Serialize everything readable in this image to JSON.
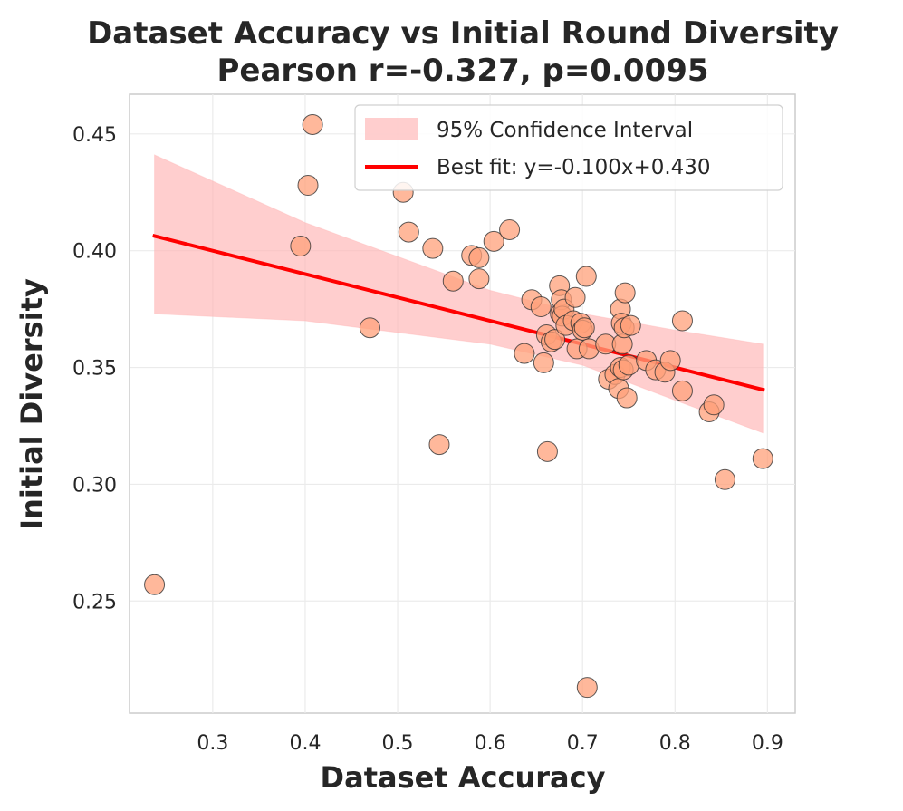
{
  "chart_data": {
    "type": "scatter",
    "title": "Dataset Accuracy vs Initial Round Diversity",
    "subtitle": "Pearson r=-0.327, p=0.0095",
    "xlabel": "Dataset Accuracy",
    "ylabel": "Initial Diversity",
    "xlim": [
      0.21,
      0.93
    ],
    "ylim": [
      0.202,
      0.467
    ],
    "xticks": [
      0.3,
      0.4,
      0.5,
      0.6,
      0.7,
      0.8,
      0.9
    ],
    "yticks": [
      0.25,
      0.3,
      0.35,
      0.4,
      0.45
    ],
    "xtick_labels": [
      "0.3",
      "0.4",
      "0.5",
      "0.6",
      "0.7",
      "0.8",
      "0.9"
    ],
    "ytick_labels": [
      "0.25",
      "0.30",
      "0.35",
      "0.40",
      "0.45"
    ],
    "grid": true,
    "legend_position": "top-right",
    "legend": [
      {
        "label": "95% Confidence Interval",
        "kind": "band"
      },
      {
        "label": "Best fit: y=-0.100x+0.430",
        "kind": "line"
      }
    ],
    "fit_line": {
      "slope": -0.1,
      "intercept": 0.43,
      "x_range": [
        0.237,
        0.895
      ],
      "color": "#ff0000"
    },
    "confidence_band": {
      "x": [
        0.237,
        0.4,
        0.6,
        0.7,
        0.8,
        0.895
      ],
      "upper": [
        0.441,
        0.412,
        0.383,
        0.373,
        0.366,
        0.36
      ],
      "lower": [
        0.373,
        0.37,
        0.36,
        0.351,
        0.336,
        0.322
      ],
      "color": "#ffb3b3"
    },
    "points": {
      "color": "#ffa07a",
      "x": [
        0.237,
        0.395,
        0.403,
        0.408,
        0.47,
        0.506,
        0.512,
        0.538,
        0.545,
        0.56,
        0.58,
        0.588,
        0.588,
        0.604,
        0.621,
        0.637,
        0.645,
        0.655,
        0.658,
        0.661,
        0.662,
        0.666,
        0.67,
        0.675,
        0.676,
        0.677,
        0.678,
        0.68,
        0.682,
        0.69,
        0.692,
        0.694,
        0.698,
        0.7,
        0.702,
        0.704,
        0.705,
        0.707,
        0.725,
        0.728,
        0.735,
        0.739,
        0.741,
        0.741,
        0.742,
        0.743,
        0.744,
        0.745,
        0.746,
        0.748,
        0.75,
        0.752,
        0.769,
        0.779,
        0.789,
        0.795,
        0.808,
        0.808,
        0.837,
        0.842,
        0.854,
        0.895
      ],
      "y": [
        0.257,
        0.402,
        0.428,
        0.454,
        0.367,
        0.425,
        0.408,
        0.401,
        0.317,
        0.387,
        0.398,
        0.388,
        0.397,
        0.404,
        0.409,
        0.356,
        0.379,
        0.376,
        0.352,
        0.364,
        0.314,
        0.361,
        0.362,
        0.385,
        0.373,
        0.379,
        0.372,
        0.375,
        0.368,
        0.37,
        0.38,
        0.358,
        0.369,
        0.366,
        0.367,
        0.389,
        0.213,
        0.358,
        0.36,
        0.345,
        0.347,
        0.341,
        0.375,
        0.35,
        0.369,
        0.36,
        0.349,
        0.367,
        0.382,
        0.337,
        0.351,
        0.368,
        0.353,
        0.349,
        0.348,
        0.353,
        0.34,
        0.37,
        0.331,
        0.334,
        0.302,
        0.311
      ]
    }
  }
}
